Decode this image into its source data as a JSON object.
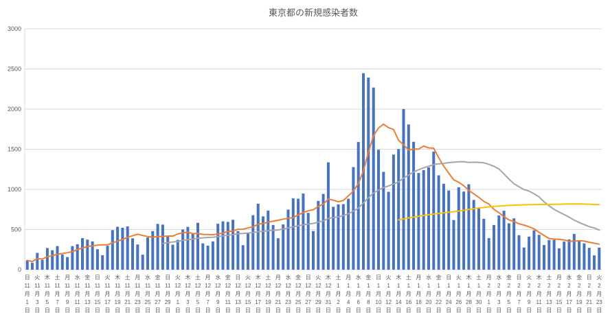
{
  "title": "東京都の新規感染者数",
  "chart_data": {
    "type": "bar",
    "title": "東京都の新規感染者数",
    "ylim": [
      0,
      3000
    ],
    "y_ticks": [
      0,
      500,
      1000,
      1500,
      2000,
      2500,
      3000
    ],
    "grid": true,
    "legend": "none",
    "x_tick_every": 2,
    "x_tick_labels": [
      "日 11月1日",
      "火 11月3日",
      "木 11月5日",
      "土 11月7日",
      "月 11月9日",
      "水 11月11日",
      "金 11月13日",
      "日 11月15日",
      "火 11月17日",
      "木 11月19日",
      "土 11月21日",
      "月 11月23日",
      "水 11月25日",
      "金 11月27日",
      "日 11月29日",
      "火 12月1日",
      "木 12月3日",
      "土 12月5日",
      "月 12月7日",
      "水 12月9日",
      "金 12月11日",
      "日 12月13日",
      "火 12月15日",
      "木 12月17日",
      "土 12月19日",
      "月 12月21日",
      "水 12月23日",
      "金 12月25日",
      "日 12月27日",
      "火 12月29日",
      "木 12月31日",
      "土 1月2日",
      "月 1月4日",
      "水 1月6日",
      "金 1月8日",
      "日 1月10日",
      "火 1月12日",
      "木 1月14日",
      "土 1月16日",
      "月 1月18日",
      "水 1月20日",
      "金 1月22日",
      "日 1月24日",
      "火 1月26日",
      "木 1月28日",
      "土 1月30日",
      "月 2月1日",
      "水 2月3日",
      "金 2月5日",
      "日 2月7日",
      "火 2月9日",
      "木 2月11日",
      "土 2月13日",
      "月 2月15日",
      "水 2月17日",
      "金 2月19日",
      "日 2月21日",
      "火 2月23日"
    ],
    "values": [
      116,
      87,
      209,
      122,
      269,
      242,
      294,
      189,
      157,
      293,
      317,
      393,
      374,
      352,
      255,
      180,
      298,
      493,
      534,
      522,
      539,
      391,
      314,
      186,
      401,
      481,
      570,
      561,
      418,
      311,
      372,
      500,
      533,
      449,
      584,
      327,
      299,
      352,
      572,
      602,
      595,
      621,
      480,
      305,
      460,
      678,
      822,
      664,
      736,
      556,
      392,
      563,
      748,
      888,
      884,
      949,
      708,
      481,
      856,
      944,
      1337,
      783,
      814,
      816,
      884,
      1278,
      1591,
      2447,
      2392,
      2268,
      1494,
      1219,
      970,
      1433,
      1502,
      2001,
      1809,
      1592,
      1204,
      1240,
      1274,
      1471,
      1175,
      1070,
      986,
      618,
      1026,
      973,
      1064,
      868,
      769,
      633,
      393,
      556,
      676,
      734,
      577,
      639,
      429,
      276,
      412,
      491,
      434,
      307,
      369,
      371,
      266,
      350,
      378,
      445,
      353,
      327,
      272,
      178,
      275
    ],
    "series": [
      {
        "name": "daily-bars",
        "type": "bar",
        "color": "#4472C4"
      },
      {
        "name": "orange-line",
        "type": "moving_average",
        "window": 7,
        "start_at_full_window": false,
        "color": "#ED7D31"
      },
      {
        "name": "gray-line",
        "type": "moving_average",
        "window": 28,
        "start_at_full_window": true,
        "color": "#A5A5A5"
      },
      {
        "name": "yellow-line",
        "type": "points",
        "color": "#FFC000",
        "points": [
          [
            74,
            620
          ],
          [
            76,
            645
          ],
          [
            78,
            665
          ],
          [
            80,
            685
          ],
          [
            82,
            700
          ],
          [
            84,
            715
          ],
          [
            86,
            730
          ],
          [
            88,
            750
          ],
          [
            90,
            768
          ],
          [
            92,
            782
          ],
          [
            94,
            792
          ],
          [
            96,
            800
          ],
          [
            98,
            806
          ],
          [
            100,
            810
          ],
          [
            102,
            812
          ],
          [
            104,
            813
          ],
          [
            106,
            815
          ],
          [
            108,
            818
          ],
          [
            110,
            820
          ],
          [
            112,
            815
          ],
          [
            114,
            810
          ]
        ]
      }
    ],
    "colors": {
      "grid": "#D9D9D9",
      "axis": "#D9D9D9",
      "text": "#595959",
      "background": "#FFFFFF"
    }
  }
}
